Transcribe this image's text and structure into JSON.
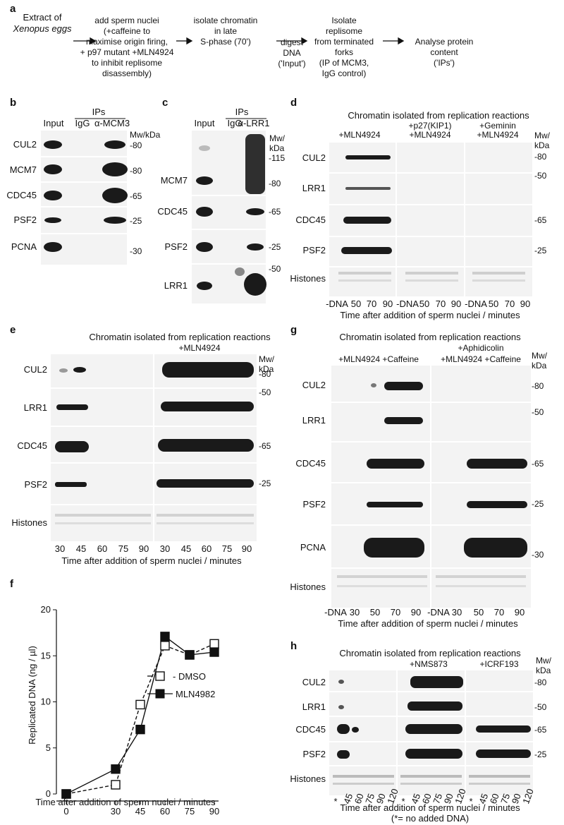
{
  "panel_a": {
    "label": "a",
    "steps": [
      [
        "Extract of",
        "Xenopus eggs"
      ],
      [
        "add sperm nuclei",
        "(+caffeine to",
        "maximise origin firing,",
        "+ p97 mutant +MLN4924",
        "to inhibit replisome",
        "disassembly)"
      ],
      [
        "isolate chromatin",
        "in late",
        "S-phase (70')"
      ],
      [
        "digest",
        "DNA",
        "('Input')"
      ],
      [
        "Isolate",
        "replisome",
        "from terminated",
        "forks",
        "(IP of MCM3,",
        "IgG control)"
      ],
      [
        "Analyse protein",
        "content",
        "('IPs')"
      ]
    ]
  },
  "panel_b": {
    "label": "b",
    "ips_header": "IPs",
    "lanes": [
      "Input",
      "IgG",
      "α-MCM3"
    ],
    "mw_header": "Mw/kDa",
    "rows": [
      {
        "name": "CUL2",
        "mw": "-80"
      },
      {
        "name": "MCM7",
        "mw": "-80"
      },
      {
        "name": "CDC45",
        "mw": "-65"
      },
      {
        "name": "PSF2",
        "mw": "-25"
      },
      {
        "name": "PCNA",
        "mw": "-30"
      }
    ]
  },
  "panel_c": {
    "label": "c",
    "ips_header": "IPs",
    "lanes": [
      "Input",
      "IgG",
      "α-LRR1"
    ],
    "mw_header": [
      "Mw/",
      "kDa"
    ],
    "rows": [
      {
        "name": "MCM7",
        "mw": [
          "-115",
          "-80"
        ]
      },
      {
        "name": "CDC45",
        "mw": [
          "-65"
        ]
      },
      {
        "name": "PSF2",
        "mw": [
          "-25"
        ]
      },
      {
        "name": "LRR1",
        "mw": [
          "-50"
        ]
      }
    ]
  },
  "panel_d": {
    "label": "d",
    "title": "Chromatin isolated from replication reactions",
    "groups": [
      [
        "+MLN4924"
      ],
      [
        "+p27(KIP1)",
        "+MLN4924"
      ],
      [
        "+Geminin",
        "+MLN4924"
      ]
    ],
    "mw_header": [
      "Mw/",
      "kDa"
    ],
    "rows": [
      {
        "name": "CUL2",
        "mw": "-80"
      },
      {
        "name": "LRR1",
        "mw": "-50"
      },
      {
        "name": "CDC45",
        "mw": "-65"
      },
      {
        "name": "PSF2",
        "mw": "-25"
      },
      {
        "name": "Histones",
        "mw": ""
      }
    ],
    "lanes": [
      "-DNA",
      "50",
      "70",
      "90",
      "-DNA",
      "50",
      "70",
      "90",
      "-DNA",
      "50",
      "70",
      "90"
    ],
    "xlabel": "Time after addition of sperm nuclei / minutes"
  },
  "panel_e": {
    "label": "e",
    "title": "Chromatin isolated from replication reactions",
    "groups": [
      "+MLN4924"
    ],
    "mw_header": [
      "Mw/",
      "kDa"
    ],
    "rows": [
      {
        "name": "CUL2",
        "mw": "-80"
      },
      {
        "name": "LRR1",
        "mw": "-50"
      },
      {
        "name": "CDC45",
        "mw": "-65"
      },
      {
        "name": "PSF2",
        "mw": "-25"
      },
      {
        "name": "Histones",
        "mw": ""
      }
    ],
    "lanes": [
      "30",
      "45",
      "60",
      "75",
      "90",
      "30",
      "45",
      "60",
      "75",
      "90"
    ],
    "xlabel": "Time after addition of sperm nuclei / minutes"
  },
  "panel_f": {
    "label": "f",
    "legend": [
      "DMSO",
      "MLN4982"
    ]
  },
  "panel_g": {
    "label": "g",
    "title": "Chromatin isolated from replication reactions",
    "groups": [
      "+MLN4924 +Caffeine",
      "+Aphidicolin",
      "+MLN4924 +Caffeine"
    ],
    "mw_header": [
      "Mw/",
      "kDa"
    ],
    "rows": [
      {
        "name": "CUL2",
        "mw": "-80"
      },
      {
        "name": "LRR1",
        "mw": "-50"
      },
      {
        "name": "CDC45",
        "mw": "-65"
      },
      {
        "name": "PSF2",
        "mw": "-25"
      },
      {
        "name": "PCNA",
        "mw": "-30"
      },
      {
        "name": "Histones",
        "mw": ""
      }
    ],
    "lanes": [
      "-DNA",
      "30",
      "50",
      "70",
      "90",
      "-DNA",
      "30",
      "50",
      "70",
      "90"
    ],
    "xlabel": "Time after addition of sperm nuclei / minutes"
  },
  "panel_h": {
    "label": "h",
    "title": "Chromatin isolated from replication reactions",
    "groups": [
      "+NMS873",
      "+ICRF193"
    ],
    "mw_header": [
      "Mw/",
      "kDa"
    ],
    "rows": [
      {
        "name": "CUL2",
        "mw": "-80"
      },
      {
        "name": "LRR1",
        "mw": "-50"
      },
      {
        "name": "CDC45",
        "mw": "-65"
      },
      {
        "name": "PSF2",
        "mw": "-25"
      },
      {
        "name": "Histones",
        "mw": ""
      }
    ],
    "lanes": [
      "*",
      "45",
      "60",
      "75",
      "90",
      "120",
      "*",
      "45",
      "60",
      "75",
      "90",
      "120",
      "*",
      "45",
      "60",
      "75",
      "90",
      "120"
    ],
    "xlabel": "Time after addition of sperm nuclei / minutes",
    "footnote": "(*= no added DNA)"
  },
  "chart_data": {
    "type": "line",
    "xlabel": "Time after addition of sperm nuclei / minutes",
    "ylabel": "Replicated DNA (ng / µl)",
    "x": [
      0,
      30,
      45,
      60,
      75,
      90
    ],
    "xlim": [
      0,
      90
    ],
    "ylim": [
      0,
      20
    ],
    "xticks": [
      0,
      30,
      45,
      60,
      75,
      90
    ],
    "yticks": [
      0,
      5,
      10,
      15,
      20
    ],
    "grid": false,
    "legend_position": "center-left",
    "series": [
      {
        "name": "DMSO",
        "marker": "open-square",
        "line": "dashed",
        "values": [
          0,
          1.0,
          9.7,
          16.1,
          15.1,
          16.3
        ]
      },
      {
        "name": "MLN4982",
        "marker": "filled-square",
        "line": "solid",
        "values": [
          0,
          2.7,
          7.0,
          17.1,
          15.1,
          15.4
        ]
      }
    ]
  }
}
